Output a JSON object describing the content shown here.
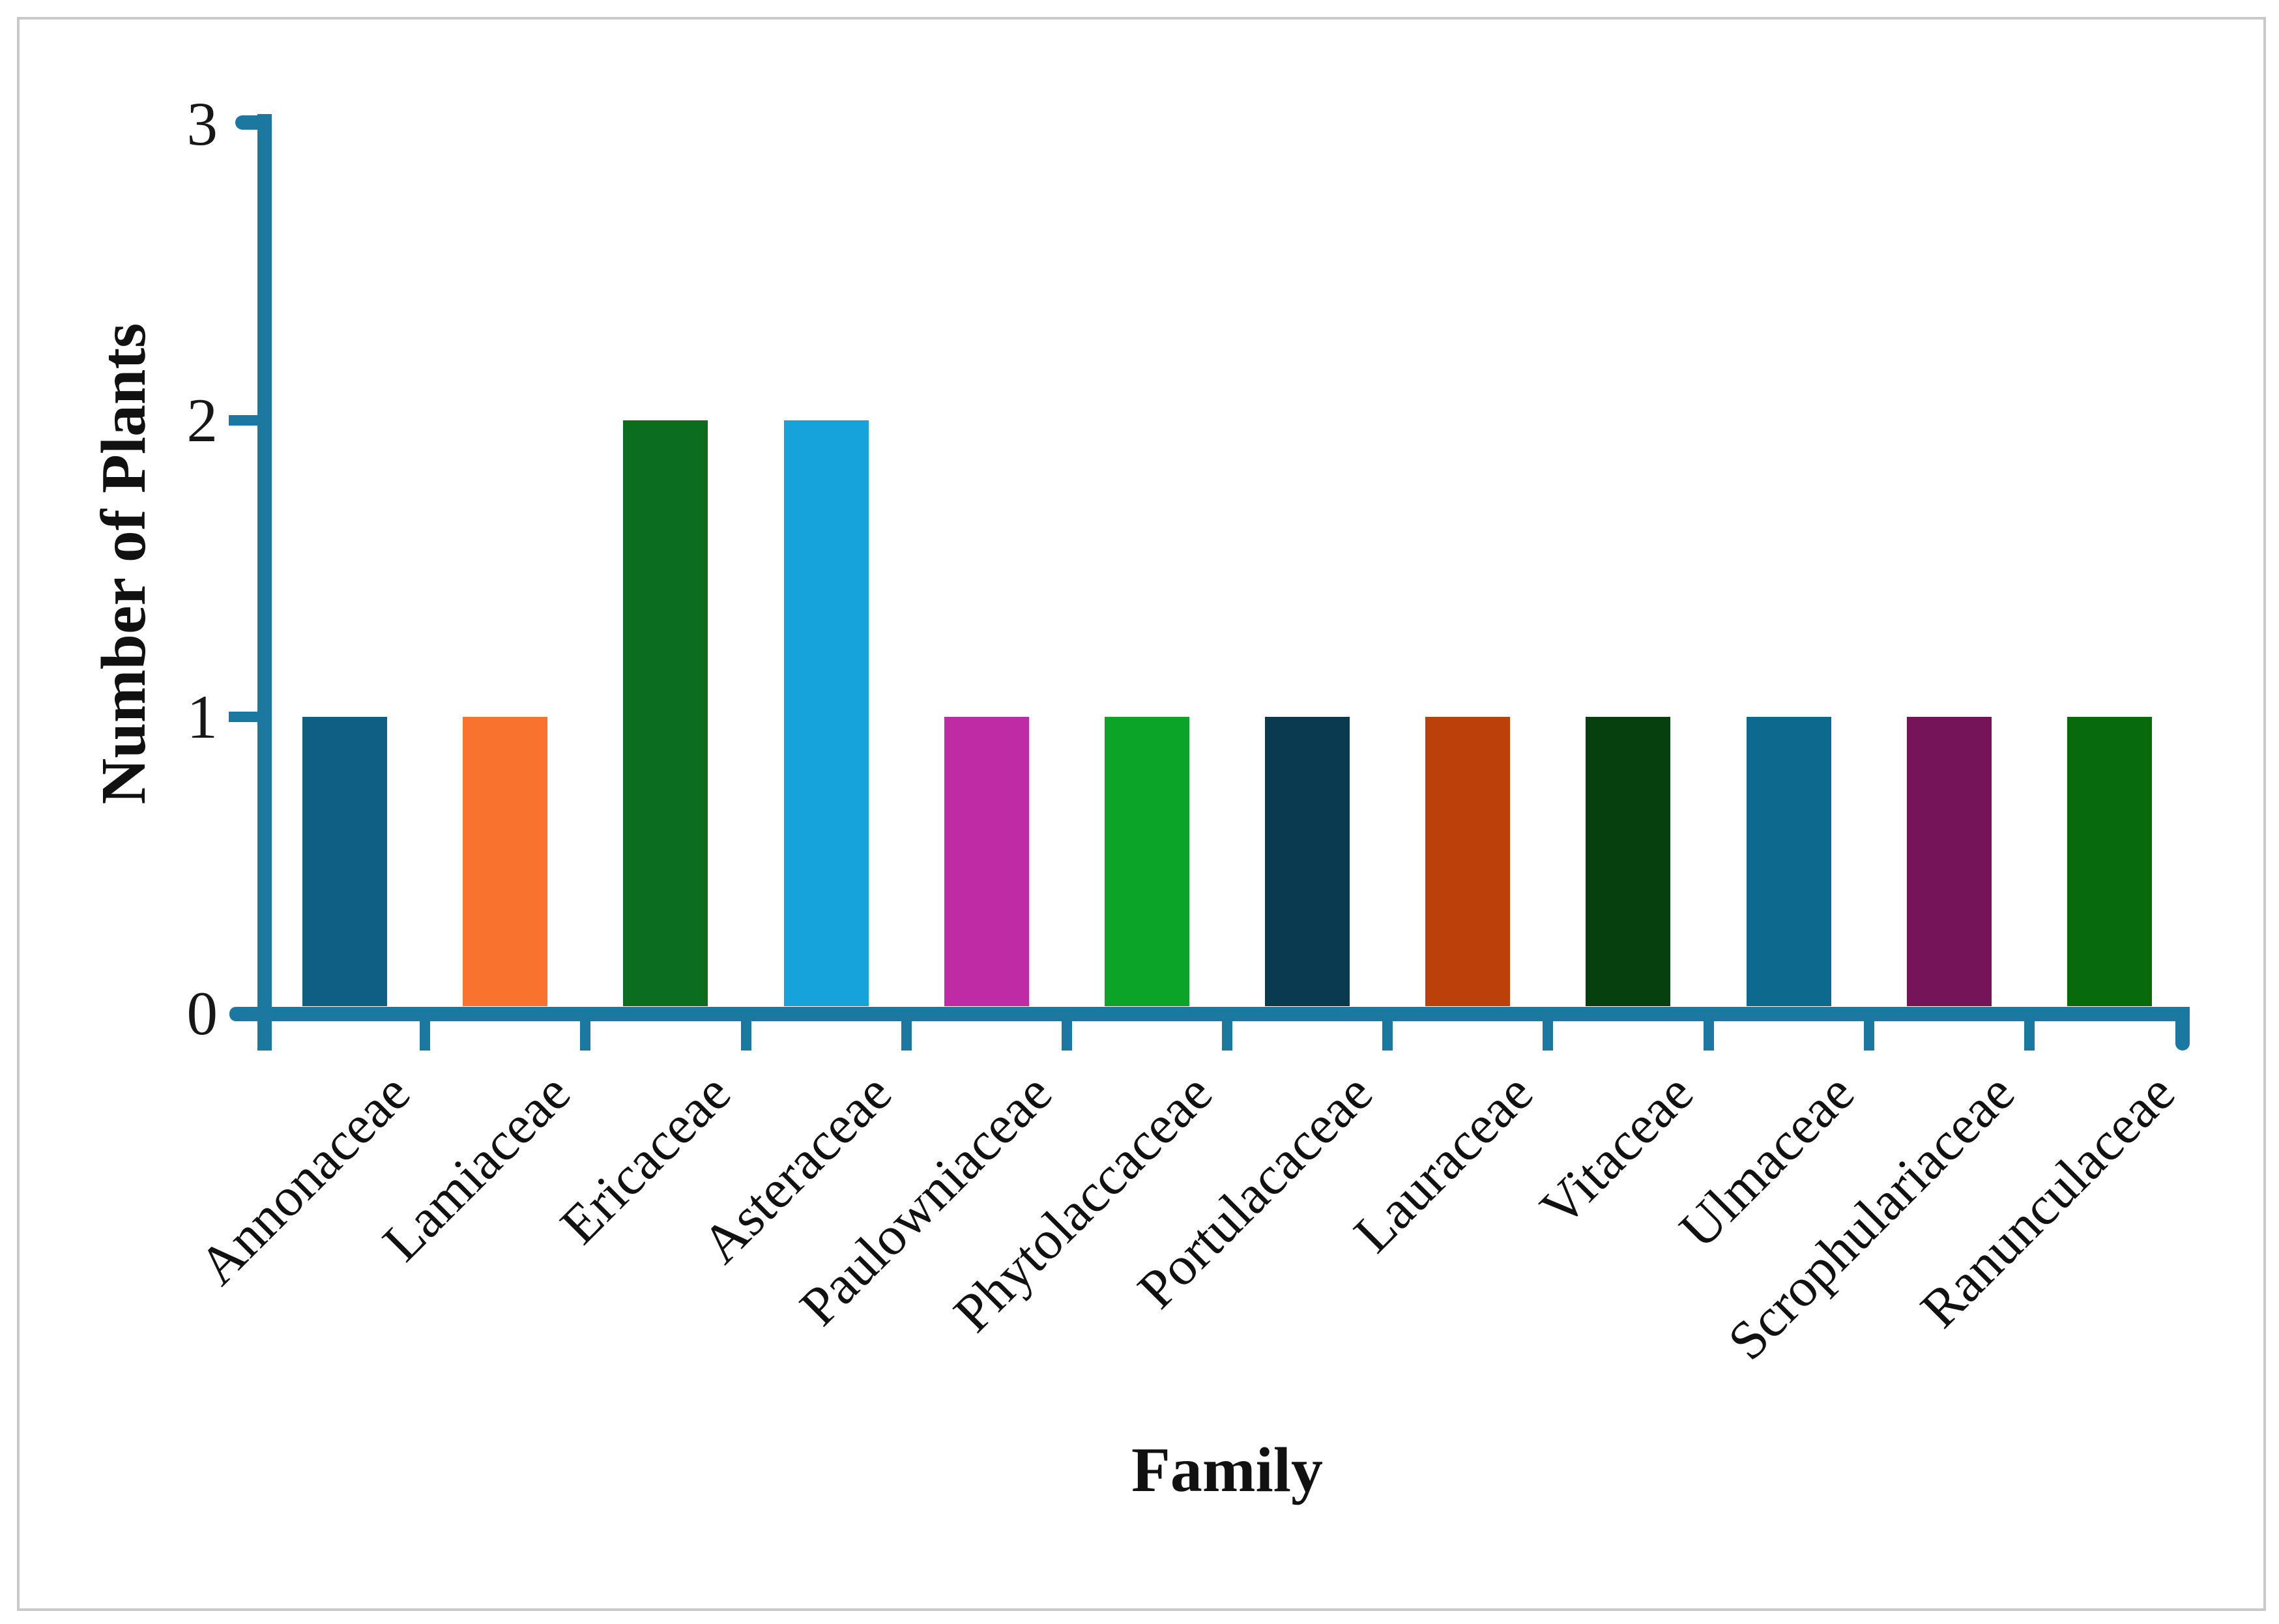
{
  "chart_data": {
    "type": "bar",
    "title": "",
    "xlabel": "Family",
    "ylabel": "Number of Plants",
    "categories": [
      "Annonaceae",
      "Lamiaceae",
      "Ericaceae",
      "Asteraceae",
      "Paulowniaceae",
      "Phytolaccaceae",
      "Portulacaceae",
      "Lauraceae",
      "Vitaceae",
      "Ulmaceae",
      "Scrophulariaceae",
      "Ranunculaceae"
    ],
    "values": [
      1,
      1,
      2,
      2,
      1,
      1,
      1,
      1,
      1,
      1,
      1,
      1
    ],
    "bar_colors": [
      "#0E5F81",
      "#F9722E",
      "#0B6E1E",
      "#16A3DC",
      "#BE2BA5",
      "#0CA428",
      "#0A3A50",
      "#BB4009",
      "#07400F",
      "#0D6A8F",
      "#761459",
      "#076B0D"
    ],
    "ylim": [
      0,
      3
    ],
    "yticks": [
      "0",
      "1",
      "2",
      "3"
    ],
    "axis_color": "#1B78A0",
    "grid": false,
    "legend_position": "none",
    "frame_border_color": "#C9C9C9"
  }
}
